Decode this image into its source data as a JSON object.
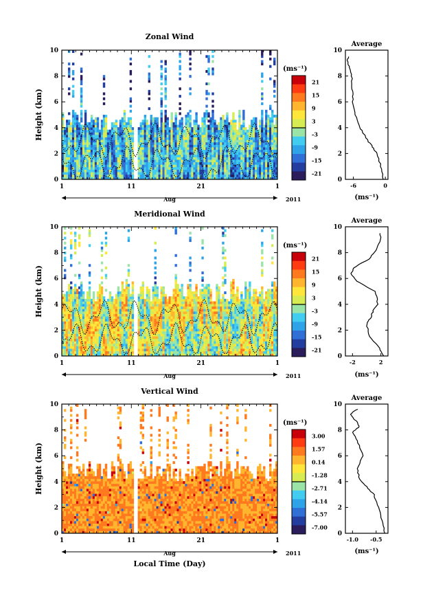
{
  "common": {
    "y_label": "Height (km)",
    "y_ticks": [
      "0",
      "2",
      "4",
      "6",
      "8",
      "10"
    ],
    "x_ticks": [
      "1",
      "11",
      "21",
      "1"
    ],
    "month_label": "Aug",
    "year_label": "2011",
    "unit_label": "(ms⁻¹)",
    "x_axis_title": "Local Time (Day)",
    "profile_title": "Average"
  },
  "colorscale": [
    "#2b1d5c",
    "#243ea0",
    "#2f6fd6",
    "#2ea3e8",
    "#42cdf0",
    "#9be4a8",
    "#d6ec52",
    "#ffe63a",
    "#ffb52e",
    "#ff7a1e",
    "#ff3b12",
    "#c8000a"
  ],
  "chart_data": [
    {
      "type": "heatmap",
      "title": "Zonal Wind",
      "xlabel": "Aug",
      "ylabel": "Height (km)",
      "xlim": [
        1,
        32
      ],
      "ylim": [
        0,
        10
      ],
      "colorbar": {
        "label": "(ms⁻¹)",
        "ticks": [
          "21",
          "15",
          "9",
          "3",
          "-3",
          "-9",
          "-15",
          "-21"
        ],
        "range": [
          -24,
          24
        ]
      },
      "seed": 7,
      "data_ceiling_km": 4.5,
      "bias": -0.35,
      "profile": {
        "title": "Average",
        "xlabel": "(ms⁻¹)",
        "x_ticks": [
          "-6",
          "0"
        ],
        "xlim": [
          -7.5,
          0.5
        ],
        "x": [
          -0.4,
          -0.8,
          -1.6,
          -2.4,
          -3.3,
          -4.0,
          -4.8,
          -5.6,
          -6.1,
          -6.2,
          -6.3,
          -6.6,
          -7.1,
          -7.0
        ],
        "y": [
          0.0,
          1.0,
          2.0,
          2.5,
          3.0,
          3.5,
          4.0,
          5.0,
          6.0,
          7.0,
          8.0,
          8.6,
          9.0,
          9.5
        ]
      }
    },
    {
      "type": "heatmap",
      "title": "Meridional Wind",
      "xlabel": "Aug",
      "ylabel": "Height (km)",
      "xlim": [
        1,
        32
      ],
      "ylim": [
        0,
        10
      ],
      "colorbar": {
        "label": "(ms⁻¹)",
        "ticks": [
          "21",
          "15",
          "9",
          "3",
          "-3",
          "-9",
          "-15",
          "-21"
        ],
        "range": [
          -24,
          24
        ]
      },
      "seed": 23,
      "data_ceiling_km": 5.0,
      "bias": 0.1,
      "profile": {
        "title": "Average",
        "xlabel": "(ms⁻¹)",
        "x_ticks": [
          "-2",
          "2"
        ],
        "xlim": [
          -3,
          3
        ],
        "x": [
          2.4,
          1.8,
          0.4,
          0.0,
          0.6,
          0.9,
          1.6,
          1.2,
          -1.4,
          -2.2,
          -1.9,
          0.3,
          1.4,
          2.0,
          1.8
        ],
        "y": [
          0.0,
          0.6,
          1.5,
          2.5,
          3.0,
          3.5,
          4.0,
          5.0,
          5.8,
          6.3,
          6.8,
          7.5,
          8.2,
          9.0,
          9.5
        ]
      }
    },
    {
      "type": "heatmap",
      "title": "Vertical Wind",
      "xlabel": "Local Time (Day)",
      "ylabel": "Height (km)",
      "xlim": [
        1,
        32
      ],
      "ylim": [
        0,
        10
      ],
      "colorbar": {
        "label": "(ms⁻¹)",
        "ticks": [
          "3.00",
          "1.57",
          "0.14",
          "-1.28",
          "-2.71",
          "-4.14",
          "-5.57",
          "-7.00"
        ],
        "range": [
          -7.7,
          3.7
        ]
      },
      "seed": 41,
      "data_ceiling_km": 4.7,
      "bias": 0.55,
      "profile": {
        "title": "Average",
        "xlabel": "(ms⁻¹)",
        "x_ticks": [
          "-1.0",
          "-0.5"
        ],
        "xlim": [
          -1.15,
          -0.25
        ],
        "x": [
          -0.32,
          -0.38,
          -0.45,
          -0.55,
          -0.7,
          -0.85,
          -0.9,
          -0.78,
          -0.88,
          -1.0,
          -0.85,
          -0.95,
          -1.05,
          -0.9
        ],
        "y": [
          0.0,
          1.0,
          2.0,
          3.0,
          3.6,
          4.2,
          5.0,
          6.0,
          7.0,
          7.8,
          8.3,
          8.8,
          9.2,
          9.6
        ]
      }
    }
  ]
}
